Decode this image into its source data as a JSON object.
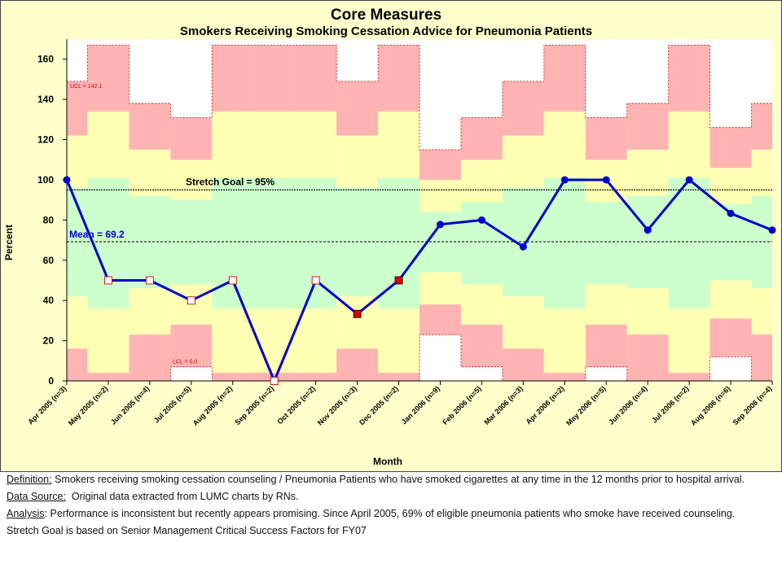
{
  "chart_data": {
    "type": "line",
    "chart_kind": "control chart (p-chart)",
    "title": "Core Measures",
    "subtitle": "Smokers Receiving Smoking Cessation Advice for Pneumonia Patients",
    "xlabel": "Month",
    "ylabel": "Percent",
    "ylim": [
      0,
      170
    ],
    "yticks": [
      0,
      20,
      40,
      60,
      80,
      100,
      120,
      140,
      160
    ],
    "grid": false,
    "categories": [
      "Apr 2005 (n=3)",
      "May 2005 (n=2)",
      "Jun 2005 (n=4)",
      "Jul 2005 (n=5)",
      "Aug 2005 (n=2)",
      "Sep 2005 (n=2)",
      "Oct 2005 (n=2)",
      "Nov 2005 (n=3)",
      "Dec 2005 (n=2)",
      "Jan 2006 (n=9)",
      "Feb 2006 (n=5)",
      "Mar 2006 (n=3)",
      "Apr 2006 (n=2)",
      "May 2006 (n=5)",
      "Jun 2006 (n=4)",
      "Jul 2006 (n=2)",
      "Aug 2006 (n=6)",
      "Sep 2006 (n=4)"
    ],
    "series": [
      {
        "values": [
          100,
          50,
          50,
          40,
          50,
          0,
          50,
          33.3,
          50,
          77.8,
          80,
          66.7,
          100,
          100,
          75,
          100,
          83.3,
          75
        ],
        "marker_types": [
          "circle",
          "open-square",
          "open-square",
          "open-square",
          "open-square",
          "open-square",
          "open-square",
          "red-square",
          "red-square",
          "circle",
          "circle",
          "circle",
          "circle",
          "circle",
          "circle",
          "circle",
          "circle",
          "circle"
        ]
      }
    ],
    "mean": 69.2,
    "mean_label": "Mean = 69.2",
    "stretch_goal": 95,
    "stretch_goal_label": "Stretch Goal = 95%",
    "ucl_label": "UCL = 142.1",
    "lcl_label": "LCL = 0.0",
    "zones": {
      "ucl": [
        149,
        167,
        138,
        131,
        167,
        167,
        167,
        149,
        167,
        115,
        131,
        149,
        167,
        131,
        138,
        167,
        126,
        138
      ],
      "sigma2_u": [
        122,
        134,
        115,
        110,
        134,
        134,
        134,
        122,
        134,
        100,
        110,
        122,
        134,
        110,
        115,
        134,
        106,
        115
      ],
      "sigma1_u": [
        96,
        101,
        92,
        90,
        101,
        101,
        101,
        96,
        101,
        84,
        89,
        96,
        101,
        89,
        92,
        101,
        88,
        92
      ],
      "sigma1_l": [
        42,
        36,
        46,
        48,
        36,
        36,
        36,
        42,
        36,
        54,
        48,
        42,
        36,
        48,
        46,
        36,
        50,
        46
      ],
      "sigma2_l": [
        16,
        4,
        23,
        28,
        4,
        4,
        4,
        16,
        4,
        38,
        28,
        16,
        4,
        28,
        23,
        4,
        31,
        23
      ],
      "lcl": [
        0,
        0,
        0,
        7,
        0,
        0,
        0,
        0,
        0,
        23,
        7,
        0,
        0,
        7,
        0,
        0,
        12,
        0
      ]
    },
    "colors": {
      "background": "#ffffcc",
      "plot": "#ffffff",
      "zone_outer": "#ffb3b3",
      "zone_middle": "#ffffb3",
      "zone_inner": "#ccffcc",
      "line": "#0000cc",
      "mean": "#0000cc",
      "red_marker": "#dd0000",
      "limit_line": "#cc0000"
    }
  },
  "notes": {
    "definition_label": "Definition:",
    "definition_text": " Smokers receiving smoking cessation counseling / Pneumonia Patients who have smoked cigarettes at any time in the 12 months prior to hospital arrival.",
    "datasource_label": "Data Source:",
    "datasource_text": "  Original data extracted from LUMC charts by RNs.",
    "analysis_label": "Analysis",
    "analysis_text": ": Performance is inconsistent but recently appears promising.  Since April 2005, 69% of eligible pneumonia patients who smoke have received counseling.",
    "goal_text": "Stretch Goal is based on Senior Management Critical Success Factors for FY07"
  }
}
